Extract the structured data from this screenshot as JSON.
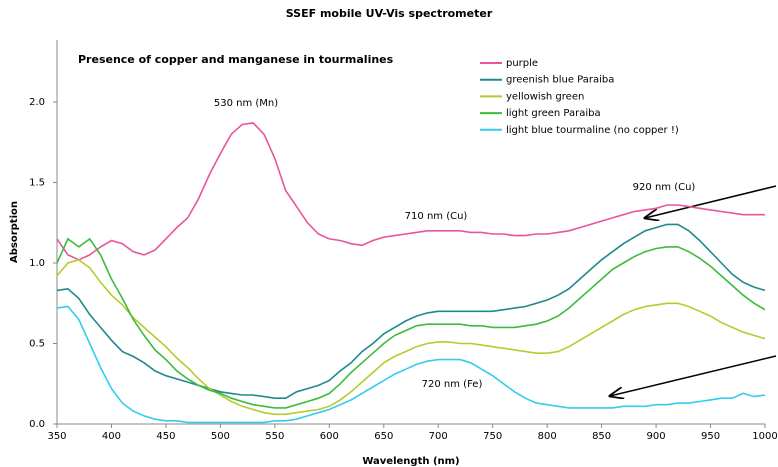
{
  "chart_data": {
    "type": "line",
    "title": "SSEF mobile UV-Vis spectrometer",
    "subtitle": "Presence of copper and manganese in tourmalines",
    "xlabel": "Wavelength (nm)",
    "ylabel": "Absorption",
    "annotations": [
      "530 nm (Mn)",
      "710 nm (Cu)",
      "920 nm (Cu)",
      "720 nm (Fe)"
    ],
    "xlim": [
      350,
      1000
    ],
    "xticks": [
      350,
      400,
      450,
      500,
      550,
      600,
      650,
      700,
      750,
      800,
      850,
      900,
      950,
      1000
    ],
    "ylim": [
      0,
      2
    ],
    "yticks": [
      {
        "value": 0,
        "label": "0.0"
      },
      0.5,
      {
        "value": 1,
        "label": "1.0"
      },
      1.5,
      {
        "value": 2,
        "label": "2.0"
      }
    ],
    "x": [
      350,
      360,
      370,
      380,
      390,
      400,
      410,
      420,
      430,
      440,
      450,
      460,
      470,
      480,
      490,
      500,
      510,
      520,
      530,
      540,
      550,
      560,
      570,
      580,
      590,
      600,
      610,
      620,
      630,
      640,
      650,
      660,
      670,
      680,
      690,
      700,
      710,
      720,
      730,
      740,
      750,
      760,
      770,
      780,
      790,
      800,
      810,
      820,
      830,
      840,
      850,
      860,
      870,
      880,
      890,
      900,
      910,
      920,
      930,
      940,
      950,
      960,
      970,
      980,
      990,
      1000
    ],
    "series": [
      {
        "name": "purple",
        "color": "#e8559b",
        "values": [
          1.15,
          1.05,
          1.02,
          1.05,
          1.1,
          1.14,
          1.12,
          1.07,
          1.05,
          1.08,
          1.15,
          1.22,
          1.28,
          1.4,
          1.55,
          1.68,
          1.8,
          1.86,
          1.87,
          1.8,
          1.65,
          1.45,
          1.35,
          1.25,
          1.18,
          1.15,
          1.14,
          1.12,
          1.11,
          1.14,
          1.16,
          1.17,
          1.18,
          1.19,
          1.2,
          1.2,
          1.2,
          1.2,
          1.19,
          1.19,
          1.18,
          1.18,
          1.17,
          1.17,
          1.18,
          1.18,
          1.19,
          1.2,
          1.22,
          1.24,
          1.26,
          1.28,
          1.3,
          1.32,
          1.33,
          1.34,
          1.36,
          1.36,
          1.35,
          1.34,
          1.33,
          1.32,
          1.31,
          1.3,
          1.3,
          1.3
        ]
      },
      {
        "name": "greenish blue Paraiba",
        "color": "#1f8a8c",
        "values": [
          0.83,
          0.84,
          0.78,
          0.68,
          0.6,
          0.52,
          0.45,
          0.42,
          0.38,
          0.33,
          0.3,
          0.28,
          0.26,
          0.24,
          0.22,
          0.2,
          0.19,
          0.18,
          0.18,
          0.17,
          0.16,
          0.16,
          0.2,
          0.22,
          0.24,
          0.27,
          0.33,
          0.38,
          0.45,
          0.5,
          0.56,
          0.6,
          0.64,
          0.67,
          0.69,
          0.7,
          0.7,
          0.7,
          0.7,
          0.7,
          0.7,
          0.71,
          0.72,
          0.73,
          0.75,
          0.77,
          0.8,
          0.84,
          0.9,
          0.96,
          1.02,
          1.07,
          1.12,
          1.16,
          1.2,
          1.22,
          1.24,
          1.24,
          1.2,
          1.14,
          1.07,
          1.0,
          0.93,
          0.88,
          0.85,
          0.83
        ]
      },
      {
        "name": "yellowish green",
        "color": "#b5cc2e",
        "values": [
          0.92,
          1.0,
          1.02,
          0.97,
          0.88,
          0.8,
          0.74,
          0.66,
          0.6,
          0.54,
          0.48,
          0.41,
          0.35,
          0.28,
          0.22,
          0.18,
          0.14,
          0.11,
          0.09,
          0.07,
          0.06,
          0.06,
          0.07,
          0.08,
          0.09,
          0.11,
          0.15,
          0.2,
          0.26,
          0.32,
          0.38,
          0.42,
          0.45,
          0.48,
          0.5,
          0.51,
          0.51,
          0.5,
          0.5,
          0.49,
          0.48,
          0.47,
          0.46,
          0.45,
          0.44,
          0.44,
          0.45,
          0.48,
          0.52,
          0.56,
          0.6,
          0.64,
          0.68,
          0.71,
          0.73,
          0.74,
          0.75,
          0.75,
          0.73,
          0.7,
          0.67,
          0.63,
          0.6,
          0.57,
          0.55,
          0.53
        ]
      },
      {
        "name": "light green Paraiba",
        "color": "#3dbb3d",
        "values": [
          1.0,
          1.15,
          1.1,
          1.15,
          1.05,
          0.9,
          0.78,
          0.65,
          0.55,
          0.46,
          0.4,
          0.33,
          0.28,
          0.24,
          0.21,
          0.19,
          0.16,
          0.14,
          0.12,
          0.11,
          0.1,
          0.1,
          0.12,
          0.14,
          0.16,
          0.19,
          0.25,
          0.32,
          0.38,
          0.44,
          0.5,
          0.55,
          0.58,
          0.61,
          0.62,
          0.62,
          0.62,
          0.62,
          0.61,
          0.61,
          0.6,
          0.6,
          0.6,
          0.61,
          0.62,
          0.64,
          0.67,
          0.72,
          0.78,
          0.84,
          0.9,
          0.96,
          1.0,
          1.04,
          1.07,
          1.09,
          1.1,
          1.1,
          1.07,
          1.03,
          0.98,
          0.92,
          0.86,
          0.8,
          0.75,
          0.71
        ]
      },
      {
        "name": "light blue tourmaline (no copper !)",
        "color": "#33ccee",
        "values": [
          0.72,
          0.73,
          0.65,
          0.5,
          0.35,
          0.22,
          0.13,
          0.08,
          0.05,
          0.03,
          0.02,
          0.02,
          0.01,
          0.01,
          0.01,
          0.01,
          0.01,
          0.01,
          0.01,
          0.01,
          0.02,
          0.02,
          0.03,
          0.05,
          0.07,
          0.09,
          0.12,
          0.15,
          0.19,
          0.23,
          0.27,
          0.31,
          0.34,
          0.37,
          0.39,
          0.4,
          0.4,
          0.4,
          0.38,
          0.34,
          0.3,
          0.25,
          0.2,
          0.16,
          0.13,
          0.12,
          0.11,
          0.1,
          0.1,
          0.1,
          0.1,
          0.1,
          0.11,
          0.11,
          0.11,
          0.12,
          0.12,
          0.13,
          0.13,
          0.14,
          0.15,
          0.16,
          0.16,
          0.19,
          0.17,
          0.18
        ]
      }
    ]
  }
}
